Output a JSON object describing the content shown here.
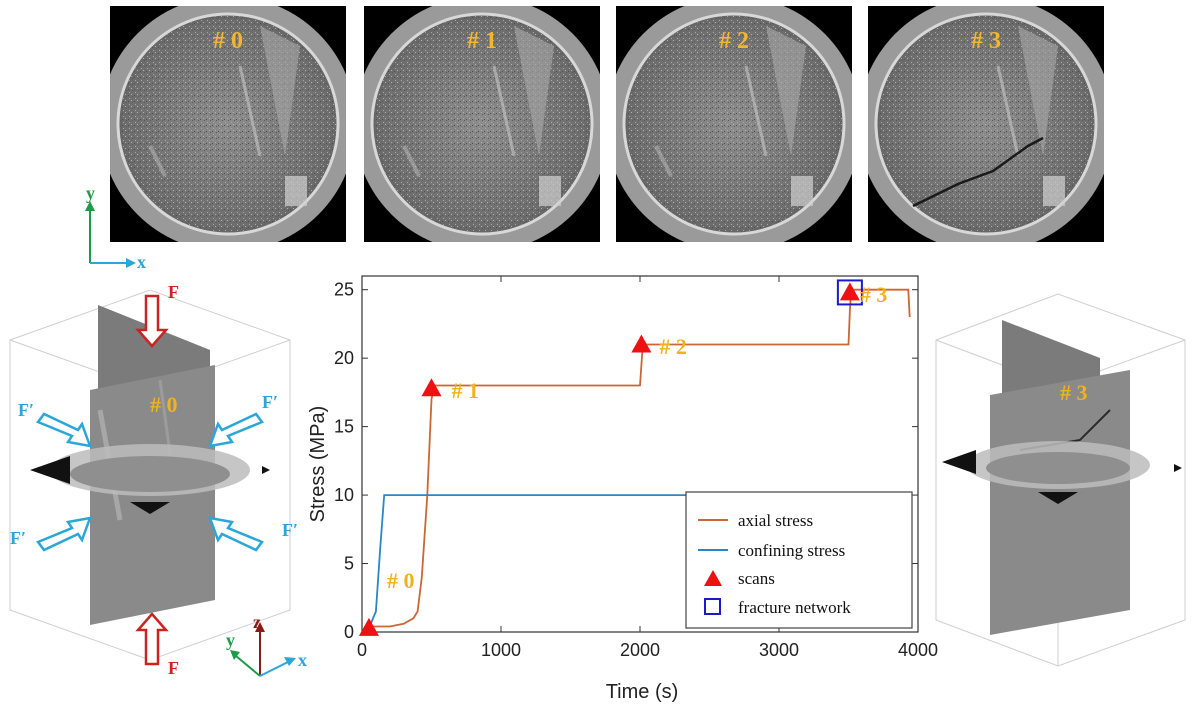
{
  "scans": [
    {
      "label": "# 0"
    },
    {
      "label": "# 1"
    },
    {
      "label": "# 2"
    },
    {
      "label": "# 3"
    }
  ],
  "axes_2d": {
    "y": "y",
    "x": "x"
  },
  "axes_3d": {
    "z": "z",
    "y": "y",
    "x": "x"
  },
  "forces": {
    "axial": "F",
    "confining": "F′"
  },
  "volumes": {
    "left_label": "# 0",
    "right_label": "# 3"
  },
  "colors": {
    "axial": "#cc6633",
    "confining": "#2a86c6",
    "scan_marker": "#ee1111",
    "fracture_box": "#1a1acc",
    "scan_label": "#f0b21d",
    "force_axial": "#cc2222",
    "force_confining": "#2aa7d8"
  },
  "chart_data": {
    "type": "line",
    "xlabel": "Time (s)",
    "ylabel": "Stress (MPa)",
    "xlim": [
      0,
      4000
    ],
    "ylim": [
      0,
      26
    ],
    "xticks": [
      0,
      1000,
      2000,
      3000,
      4000
    ],
    "yticks": [
      0,
      5,
      10,
      15,
      20,
      25
    ],
    "grid": false,
    "legend_position": "bottom-right",
    "series": [
      {
        "name": "axial stress",
        "color": "#cc6633",
        "x": [
          50,
          200,
          300,
          370,
          400,
          430,
          470,
          500,
          520,
          2000,
          2010,
          2020,
          3500,
          3510,
          3520,
          3930,
          3935,
          3940
        ],
        "y": [
          0.4,
          0.4,
          0.6,
          1.0,
          1.5,
          4,
          10,
          17,
          18,
          18,
          19.5,
          21,
          21,
          23.5,
          25,
          25,
          24,
          23
        ]
      },
      {
        "name": "confining stress",
        "color": "#2a86c6",
        "x": [
          50,
          100,
          130,
          160,
          3940
        ],
        "y": [
          0.3,
          1.5,
          6,
          10,
          10
        ]
      }
    ],
    "markers": {
      "name": "scans",
      "points": [
        {
          "x": 50,
          "y": 0.3,
          "label": "# 0"
        },
        {
          "x": 500,
          "y": 17.8,
          "label": "# 1"
        },
        {
          "x": 2010,
          "y": 21.0,
          "label": "# 2"
        },
        {
          "x": 3510,
          "y": 24.8,
          "label": "# 3"
        }
      ]
    },
    "highlight": {
      "name": "fracture network",
      "x": 3510,
      "y": 24.8
    },
    "legend": [
      "axial stress",
      "confining stress",
      "scans",
      "fracture network"
    ]
  }
}
